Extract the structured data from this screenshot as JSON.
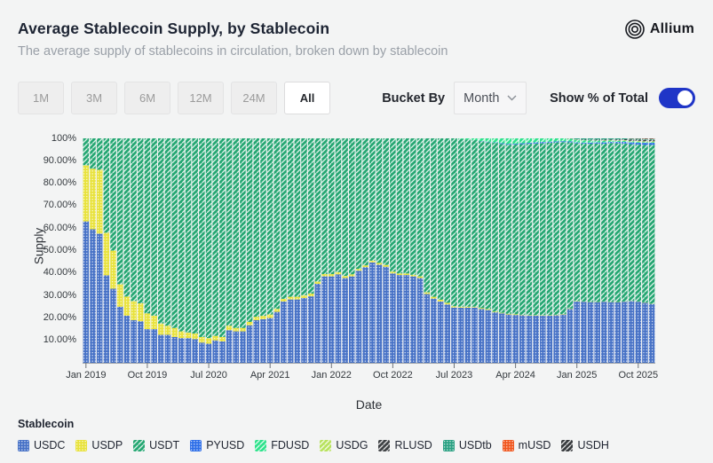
{
  "header": {
    "title": "Average Stablecoin Supply, by Stablecoin",
    "subtitle": "The average supply of stablecoins in circulation, broken down by stablecoin",
    "brand": "Allium"
  },
  "toolbar": {
    "ranges": [
      {
        "label": "1M",
        "selected": false
      },
      {
        "label": "3M",
        "selected": false
      },
      {
        "label": "6M",
        "selected": false
      },
      {
        "label": "12M",
        "selected": false
      },
      {
        "label": "24M",
        "selected": false
      },
      {
        "label": "All",
        "selected": true
      }
    ],
    "bucket_by_label": "Bucket By",
    "bucket_value": "Month",
    "show_pct_label": "Show % of Total",
    "show_pct_on": true,
    "toggle_color": "#1f35c7"
  },
  "legend": {
    "title": "Stablecoin"
  },
  "chart_data": {
    "type": "bar",
    "stacked": true,
    "percent_of_total": true,
    "x_start": "Jan 2019",
    "x_end": "Dec 2025",
    "x_interval": "month",
    "n_points": 84,
    "xlabel": "Date",
    "ylabel": "Supply",
    "ylim": [
      0,
      100
    ],
    "grid": false,
    "legend_position": "bottom",
    "y_ticks": [
      "100%",
      "90.00%",
      "80.00%",
      "70.00%",
      "60.00%",
      "50.00%",
      "40.00%",
      "30.00%",
      "20.00%",
      "10.00%"
    ],
    "y_tick_values": [
      100,
      90,
      80,
      70,
      60,
      50,
      40,
      30,
      20,
      10
    ],
    "x_ticks": [
      "Jan 2019",
      "Oct 2019",
      "Jul 2020",
      "Apr 2021",
      "Jan 2022",
      "Oct 2022",
      "Jul 2023",
      "Apr 2024",
      "Jan 2025",
      "Oct 2025"
    ],
    "x_tick_month_indices": [
      0,
      9,
      18,
      27,
      36,
      45,
      54,
      63,
      72,
      81
    ],
    "series": [
      {
        "name": "USDC",
        "color": "#4671c6",
        "pattern": "dots",
        "values": [
          63,
          59.5,
          57.5,
          39,
          33,
          25,
          21,
          19,
          18.5,
          15,
          15,
          12.5,
          12.5,
          11.5,
          11,
          11,
          10.5,
          9,
          8.5,
          10,
          9.5,
          14.5,
          14,
          14,
          16.7,
          19,
          19.4,
          20,
          22.7,
          27.3,
          28.2,
          28.2,
          28.9,
          29.6,
          35.2,
          38.5,
          38.5,
          39.4,
          37.8,
          38.5,
          41,
          42.6,
          44.7,
          43.7,
          42.8,
          39.8,
          39.1,
          39.1,
          38.5,
          37.8,
          30.6,
          28.6,
          27.3,
          26,
          24.6,
          24.5,
          24.5,
          24.6,
          24,
          23.5,
          22.5,
          22,
          21.5,
          21.3,
          21.2,
          21,
          21,
          21,
          21,
          21.2,
          21.5,
          24,
          27.3,
          27.2,
          27,
          27,
          27.2,
          27,
          27,
          27.2,
          27.5,
          27.2,
          26.8,
          26.2
        ]
      },
      {
        "name": "USDP",
        "color": "#e8e23c",
        "pattern": "dots",
        "values": [
          25,
          27,
          28.5,
          19,
          17,
          10,
          8.5,
          8.5,
          8,
          7,
          6,
          5,
          4,
          4,
          3,
          2.5,
          2.5,
          2.5,
          2.5,
          2,
          2,
          2,
          1.5,
          1.5,
          1.5,
          1.5,
          1.5,
          1.5,
          1.3,
          1.2,
          1.2,
          1.2,
          1.2,
          1.2,
          1,
          1,
          1,
          1,
          0.9,
          0.9,
          0.8,
          0.8,
          0.8,
          0.8,
          0.8,
          0.8,
          0.7,
          0.7,
          0.7,
          0.7,
          0.8,
          0.8,
          0.8,
          0.7,
          0.6,
          0.5,
          0.5,
          0.4,
          0.4,
          0.4,
          0.3,
          0.3,
          0.3,
          0.3,
          0.2,
          0.2,
          0.2,
          0.2,
          0.2,
          0.2,
          0.2,
          0.2,
          0.2,
          0.1,
          0.1,
          0.1,
          0.1,
          0.1,
          0.1,
          0.1,
          0.1,
          0.1,
          0.1,
          0.1
        ]
      },
      {
        "name": "USDT",
        "color": "#23a671",
        "pattern": "stripes",
        "values": [
          12,
          13.5,
          14,
          42,
          50,
          65,
          70.5,
          72.5,
          73.5,
          78,
          79,
          82.5,
          83.5,
          84.5,
          86,
          86.5,
          87,
          88.5,
          89,
          88,
          88.5,
          83.5,
          84.5,
          84.5,
          81.8,
          79.5,
          79.1,
          78.5,
          76,
          71.5,
          70.6,
          70.6,
          69.9,
          69.2,
          63.8,
          60.5,
          60.5,
          59.6,
          61.3,
          60.6,
          58.2,
          56.6,
          54.5,
          55.5,
          56.4,
          59.4,
          60.2,
          60.2,
          60.8,
          61.5,
          68.6,
          70.6,
          71.9,
          73.3,
          74.8,
          74.7,
          74.5,
          74.2,
          74.3,
          74.4,
          75.2,
          75.2,
          75.4,
          75.7,
          76,
          76.4,
          76.5,
          76.6,
          76.9,
          76.8,
          76.6,
          74,
          70.3,
          70.4,
          70.5,
          70.6,
          70.3,
          70.8,
          70.8,
          70.4,
          69.9,
          70,
          70.3,
          70.8
        ]
      },
      {
        "name": "PYUSD",
        "color": "#2d6ee8",
        "pattern": "dots",
        "values": [
          0,
          0,
          0,
          0,
          0,
          0,
          0,
          0,
          0,
          0,
          0,
          0,
          0,
          0,
          0,
          0,
          0,
          0,
          0,
          0,
          0,
          0,
          0,
          0,
          0,
          0,
          0,
          0,
          0,
          0,
          0,
          0,
          0,
          0,
          0,
          0,
          0,
          0,
          0,
          0,
          0,
          0,
          0,
          0,
          0,
          0,
          0,
          0,
          0,
          0,
          0,
          0,
          0,
          0,
          0,
          0,
          0,
          0,
          0.1,
          0.2,
          0.2,
          0.3,
          0.3,
          0.3,
          0.4,
          0.4,
          0.5,
          0.6,
          0.4,
          0.4,
          0.4,
          0.4,
          0.4,
          0.4,
          0.5,
          0.5,
          0.6,
          0.5,
          0.6,
          0.7,
          0.8,
          0.8,
          0.9,
          0.9
        ]
      },
      {
        "name": "FDUSD",
        "color": "#2de28b",
        "pattern": "stripes",
        "values": [
          0,
          0,
          0,
          0,
          0,
          0,
          0,
          0,
          0,
          0,
          0,
          0,
          0,
          0,
          0,
          0,
          0,
          0,
          0,
          0,
          0,
          0,
          0,
          0,
          0,
          0,
          0,
          0,
          0,
          0,
          0,
          0,
          0,
          0,
          0,
          0,
          0,
          0,
          0,
          0,
          0,
          0,
          0,
          0,
          0,
          0,
          0,
          0,
          0,
          0,
          0,
          0,
          0,
          0,
          0,
          0.3,
          0.5,
          0.8,
          1.2,
          1.5,
          1.8,
          2.2,
          2.5,
          2.4,
          2.2,
          2.0,
          1.8,
          1.6,
          1.5,
          1.4,
          1.3,
          1.2,
          1.1,
          1.0,
          0.9,
          0.8,
          0.7,
          0.6,
          0.5,
          0.5,
          0.4,
          0.4,
          0.3,
          0.3
        ]
      },
      {
        "name": "USDG",
        "color": "#b7e25d",
        "pattern": "stripes",
        "values": [
          0,
          0,
          0,
          0,
          0,
          0,
          0,
          0,
          0,
          0,
          0,
          0,
          0,
          0,
          0,
          0,
          0,
          0,
          0,
          0,
          0,
          0,
          0,
          0,
          0,
          0,
          0,
          0,
          0,
          0,
          0,
          0,
          0,
          0,
          0,
          0,
          0,
          0,
          0,
          0,
          0,
          0,
          0,
          0,
          0,
          0,
          0,
          0,
          0,
          0,
          0,
          0,
          0,
          0,
          0,
          0,
          0,
          0,
          0,
          0,
          0,
          0,
          0,
          0,
          0,
          0,
          0,
          0,
          0,
          0,
          0,
          0.1,
          0.1,
          0.1,
          0.1,
          0.1,
          0.2,
          0.2,
          0.2,
          0.3,
          0.3,
          0.4,
          0.4,
          0.4
        ]
      },
      {
        "name": "RLUSD",
        "color": "#3d4043",
        "pattern": "stripes",
        "values": [
          0,
          0,
          0,
          0,
          0,
          0,
          0,
          0,
          0,
          0,
          0,
          0,
          0,
          0,
          0,
          0,
          0,
          0,
          0,
          0,
          0,
          0,
          0,
          0,
          0,
          0,
          0,
          0,
          0,
          0,
          0,
          0,
          0,
          0,
          0,
          0,
          0,
          0,
          0,
          0,
          0,
          0,
          0,
          0,
          0,
          0,
          0,
          0,
          0,
          0,
          0,
          0,
          0,
          0,
          0,
          0,
          0,
          0,
          0,
          0,
          0,
          0,
          0,
          0,
          0,
          0,
          0,
          0,
          0,
          0,
          0,
          0.1,
          0.1,
          0.2,
          0.2,
          0.3,
          0.3,
          0.3,
          0.4,
          0.4,
          0.5,
          0.5,
          0.6,
          0.6
        ]
      },
      {
        "name": "USDtb",
        "color": "#2ba183",
        "pattern": "dots",
        "values": [
          0,
          0,
          0,
          0,
          0,
          0,
          0,
          0,
          0,
          0,
          0,
          0,
          0,
          0,
          0,
          0,
          0,
          0,
          0,
          0,
          0,
          0,
          0,
          0,
          0,
          0,
          0,
          0,
          0,
          0,
          0,
          0,
          0,
          0,
          0,
          0,
          0,
          0,
          0,
          0,
          0,
          0,
          0,
          0,
          0,
          0,
          0,
          0,
          0,
          0,
          0,
          0,
          0,
          0,
          0,
          0,
          0,
          0,
          0,
          0,
          0,
          0,
          0,
          0,
          0,
          0,
          0,
          0,
          0,
          0,
          0,
          0,
          0.5,
          0.6,
          0.7,
          0.6,
          0.6,
          0.5,
          0.5,
          0.4,
          0.4,
          0.4,
          0.4,
          0.4
        ]
      },
      {
        "name": "mUSD",
        "color": "#f0571f",
        "pattern": "dots",
        "values": [
          0,
          0,
          0,
          0,
          0,
          0,
          0,
          0,
          0,
          0,
          0,
          0,
          0,
          0,
          0,
          0,
          0,
          0,
          0,
          0,
          0,
          0,
          0,
          0,
          0,
          0,
          0,
          0,
          0,
          0,
          0,
          0,
          0,
          0,
          0,
          0,
          0,
          0,
          0,
          0,
          0,
          0,
          0,
          0,
          0,
          0,
          0,
          0,
          0,
          0,
          0,
          0,
          0,
          0,
          0,
          0,
          0,
          0,
          0,
          0,
          0,
          0,
          0,
          0,
          0,
          0,
          0,
          0,
          0,
          0,
          0,
          0,
          0,
          0,
          0,
          0,
          0,
          0,
          0,
          0,
          0.1,
          0.1,
          0.1,
          0.1
        ]
      },
      {
        "name": "USDH",
        "color": "#36393c",
        "pattern": "stripes",
        "values": [
          0,
          0,
          0,
          0,
          0,
          0,
          0,
          0,
          0,
          0,
          0,
          0,
          0,
          0,
          0,
          0,
          0,
          0,
          0,
          0,
          0,
          0,
          0,
          0,
          0,
          0,
          0,
          0,
          0,
          0,
          0,
          0,
          0,
          0,
          0,
          0,
          0,
          0,
          0,
          0,
          0,
          0,
          0,
          0,
          0,
          0,
          0,
          0,
          0,
          0,
          0,
          0,
          0,
          0,
          0,
          0,
          0,
          0,
          0,
          0,
          0,
          0,
          0,
          0,
          0,
          0,
          0,
          0,
          0,
          0,
          0,
          0,
          0,
          0,
          0,
          0,
          0,
          0,
          0,
          0,
          0.1,
          0.1,
          0.2,
          0.2
        ]
      }
    ]
  }
}
